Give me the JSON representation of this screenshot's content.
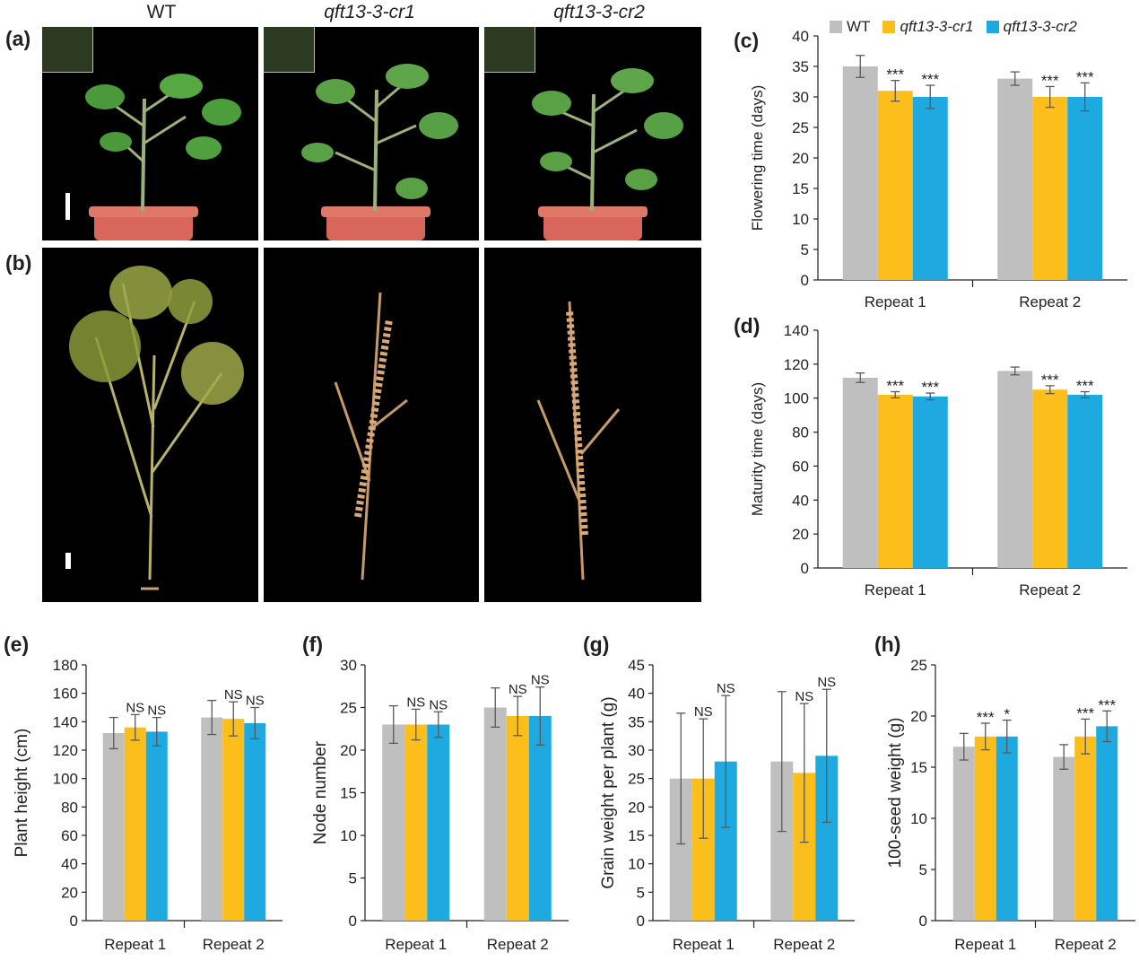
{
  "colors": {
    "wt": "#bfbfbf",
    "cr1": "#fbbe1b",
    "cr2": "#1eaae1"
  },
  "genotypes": [
    "WT",
    "qft13-3-cr1",
    "qft13-3-cr2"
  ],
  "legend": [
    {
      "name": "WT",
      "italic": false
    },
    {
      "name": "qft13-3-cr1",
      "italic": true
    },
    {
      "name": "qft13-3-cr2",
      "italic": true
    }
  ],
  "photos": {
    "a_label": "(a)",
    "b_label": "(b)",
    "column_titles": [
      "WT",
      "qft13-3-cr1",
      "qft13-3-cr2"
    ]
  },
  "chart_data": [
    {
      "id": "c",
      "label": "(c)",
      "type": "bar",
      "title": "",
      "xlabel": "",
      "ylabel": "Flowering time (days)",
      "ylim": [
        0,
        40
      ],
      "yticks": [
        0,
        5,
        10,
        15,
        20,
        25,
        30,
        35,
        40
      ],
      "categories": [
        "Repeat 1",
        "Repeat 2"
      ],
      "series": [
        {
          "name": "WT",
          "values": [
            35,
            33
          ],
          "errors": [
            1.8,
            1.1
          ],
          "annotations": [
            "",
            ""
          ]
        },
        {
          "name": "qft13-3-cr1",
          "values": [
            31,
            30
          ],
          "errors": [
            1.7,
            1.7
          ],
          "annotations": [
            "***",
            "***"
          ]
        },
        {
          "name": "qft13-3-cr2",
          "values": [
            30,
            30
          ],
          "errors": [
            1.9,
            2.3
          ],
          "annotations": [
            "***",
            "***"
          ]
        }
      ]
    },
    {
      "id": "d",
      "label": "(d)",
      "type": "bar",
      "title": "",
      "xlabel": "",
      "ylabel": "Maturity time (days)",
      "ylim": [
        0,
        140
      ],
      "yticks": [
        0,
        20,
        40,
        60,
        80,
        100,
        120,
        140
      ],
      "categories": [
        "Repeat 1",
        "Repeat 2"
      ],
      "series": [
        {
          "name": "WT",
          "values": [
            112,
            116
          ],
          "errors": [
            2.8,
            2.3
          ],
          "annotations": [
            "",
            ""
          ]
        },
        {
          "name": "qft13-3-cr1",
          "values": [
            102,
            105
          ],
          "errors": [
            1.8,
            2.3
          ],
          "annotations": [
            "***",
            "***"
          ]
        },
        {
          "name": "qft13-3-cr2",
          "values": [
            101,
            102
          ],
          "errors": [
            2.0,
            1.8
          ],
          "annotations": [
            "***",
            "***"
          ]
        }
      ]
    },
    {
      "id": "e",
      "label": "(e)",
      "type": "bar",
      "title": "",
      "xlabel": "",
      "ylabel": "Plant height (cm)",
      "ylim": [
        0,
        180
      ],
      "yticks": [
        0,
        20,
        40,
        60,
        80,
        100,
        120,
        140,
        160,
        180
      ],
      "categories": [
        "Repeat 1",
        "Repeat 2"
      ],
      "series": [
        {
          "name": "WT",
          "values": [
            132,
            143
          ],
          "errors": [
            11,
            12
          ],
          "annotations": [
            "",
            ""
          ]
        },
        {
          "name": "qft13-3-cr1",
          "values": [
            136,
            142
          ],
          "errors": [
            9,
            12
          ],
          "annotations": [
            "NS",
            "NS"
          ]
        },
        {
          "name": "qft13-3-cr2",
          "values": [
            133,
            139
          ],
          "errors": [
            10,
            11
          ],
          "annotations": [
            "NS",
            "NS"
          ]
        }
      ]
    },
    {
      "id": "f",
      "label": "(f)",
      "type": "bar",
      "title": "",
      "xlabel": "",
      "ylabel": "Node number",
      "ylim": [
        0,
        30
      ],
      "yticks": [
        0,
        5,
        10,
        15,
        20,
        25,
        30
      ],
      "categories": [
        "Repeat 1",
        "Repeat 2"
      ],
      "series": [
        {
          "name": "WT",
          "values": [
            23,
            25
          ],
          "errors": [
            2.2,
            2.3
          ],
          "annotations": [
            "",
            ""
          ]
        },
        {
          "name": "qft13-3-cr1",
          "values": [
            23,
            24
          ],
          "errors": [
            1.8,
            2.3
          ],
          "annotations": [
            "NS",
            "NS"
          ]
        },
        {
          "name": "qft13-3-cr2",
          "values": [
            23,
            24
          ],
          "errors": [
            1.5,
            3.4
          ],
          "annotations": [
            "NS",
            "NS"
          ]
        }
      ]
    },
    {
      "id": "g",
      "label": "(g)",
      "type": "bar",
      "title": "",
      "xlabel": "",
      "ylabel": "Grain weight per plant (g)",
      "ylim": [
        0,
        45
      ],
      "yticks": [
        0,
        5,
        10,
        15,
        20,
        25,
        30,
        35,
        40,
        45
      ],
      "categories": [
        "Repeat 1",
        "Repeat 2"
      ],
      "series": [
        {
          "name": "WT",
          "values": [
            25,
            28
          ],
          "errors": [
            11.5,
            12.3
          ],
          "annotations": [
            "",
            ""
          ]
        },
        {
          "name": "qft13-3-cr1",
          "values": [
            25,
            26
          ],
          "errors": [
            10.5,
            12.2
          ],
          "annotations": [
            "NS",
            "NS"
          ]
        },
        {
          "name": "qft13-3-cr2",
          "values": [
            28,
            29
          ],
          "errors": [
            11.6,
            11.7
          ],
          "annotations": [
            "NS",
            "NS"
          ]
        }
      ]
    },
    {
      "id": "h",
      "label": "(h)",
      "type": "bar",
      "title": "",
      "xlabel": "",
      "ylabel": "100-seed weight (g)",
      "ylim": [
        0,
        25
      ],
      "yticks": [
        0,
        5,
        10,
        15,
        20,
        25
      ],
      "categories": [
        "Repeat 1",
        "Repeat 2"
      ],
      "series": [
        {
          "name": "WT",
          "values": [
            17,
            16
          ],
          "errors": [
            1.3,
            1.2
          ],
          "annotations": [
            "",
            ""
          ]
        },
        {
          "name": "qft13-3-cr1",
          "values": [
            18,
            18
          ],
          "errors": [
            1.3,
            1.7
          ],
          "annotations": [
            "***",
            "***"
          ]
        },
        {
          "name": "qft13-3-cr2",
          "values": [
            18,
            19
          ],
          "errors": [
            1.6,
            1.5
          ],
          "annotations": [
            "*",
            "***"
          ]
        }
      ]
    }
  ]
}
